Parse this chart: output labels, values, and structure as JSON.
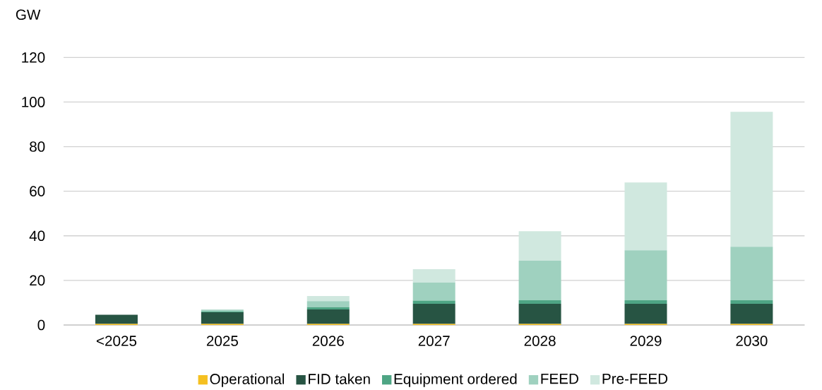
{
  "chart_data": {
    "type": "bar",
    "stacked": true,
    "ylabel": "GW",
    "categories": [
      "<2025",
      "2025",
      "2026",
      "2027",
      "2028",
      "2029",
      "2030"
    ],
    "series": [
      {
        "name": "Operational",
        "color": "#f5c021",
        "values": [
          0.5,
          0.5,
          0.5,
          0.5,
          0.5,
          0.5,
          0.5
        ]
      },
      {
        "name": "FID taken",
        "color": "#275443",
        "values": [
          4.1,
          5.2,
          6.5,
          9.0,
          9.0,
          9.0,
          9.0
        ]
      },
      {
        "name": "Equipment ordered",
        "color": "#4ea584",
        "values": [
          0,
          0.3,
          1.0,
          1.4,
          1.6,
          1.6,
          1.6
        ]
      },
      {
        "name": "FEED",
        "color": "#9fd1bf",
        "values": [
          0,
          0.9,
          2.7,
          8.1,
          17.7,
          22.4,
          24.0
        ]
      },
      {
        "name": "Pre-FEED",
        "color": "#d0e8df",
        "values": [
          0,
          0,
          2.3,
          6.0,
          13.3,
          30.4,
          60.5
        ]
      }
    ],
    "ylim": [
      0,
      120
    ],
    "yticks": [
      0,
      20,
      40,
      60,
      80,
      100,
      120
    ],
    "grid": "y",
    "legend": "bottom"
  }
}
